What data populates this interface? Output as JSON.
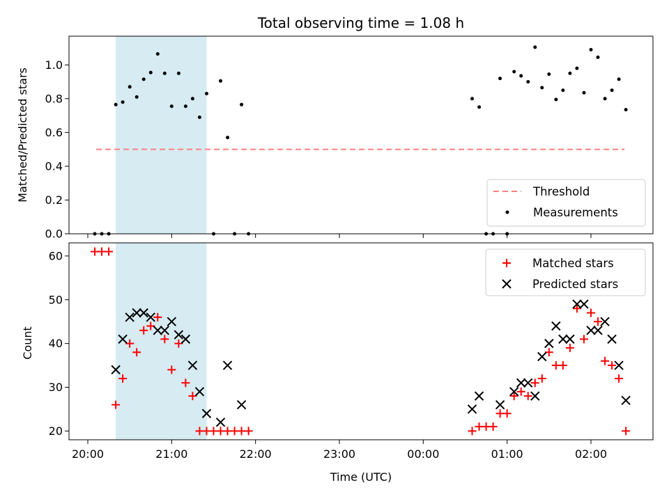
{
  "chart_data": {
    "title": "Total observing time = 1.08 h",
    "shaded_interval": {
      "start": "20:20",
      "end": "21:25",
      "color": "#add8e6"
    },
    "panels": [
      {
        "type": "scatter",
        "ylabel": "Matched/Predicted stars",
        "ylim": [
          0,
          1.17
        ],
        "yticks": [
          "0.0",
          "0.2",
          "0.4",
          "0.6",
          "0.8",
          "1.0"
        ],
        "threshold": {
          "name": "Threshold",
          "value": 0.5,
          "start": "20:06",
          "end": "02:24",
          "color": "#ff7f7f"
        },
        "legend": {
          "position": "lower-right",
          "entries": [
            "Threshold",
            "Measurements"
          ]
        },
        "series": [
          {
            "name": "Measurements",
            "color": "#000000",
            "points": [
              [
                "20:05",
                0
              ],
              [
                "20:10",
                0
              ],
              [
                "20:15",
                0
              ],
              [
                "20:20",
                0.765
              ],
              [
                "20:25",
                0.78
              ],
              [
                "20:30",
                0.87
              ],
              [
                "20:35",
                0.81
              ],
              [
                "20:40",
                0.915
              ],
              [
                "20:45",
                0.955
              ],
              [
                "20:50",
                1.065
              ],
              [
                "20:55",
                0.95
              ],
              [
                "21:00",
                0.755
              ],
              [
                "21:05",
                0.95
              ],
              [
                "21:10",
                0.755
              ],
              [
                "21:15",
                0.8
              ],
              [
                "21:20",
                0.69
              ],
              [
                "21:25",
                0.83
              ],
              [
                "21:30",
                0
              ],
              [
                "21:35",
                0.905
              ],
              [
                "21:40",
                0.57
              ],
              [
                "21:45",
                0
              ],
              [
                "21:50",
                0.765
              ],
              [
                "21:55",
                0
              ],
              [
                "00:35",
                0.8
              ],
              [
                "00:40",
                0.75
              ],
              [
                "00:45",
                0
              ],
              [
                "00:50",
                0
              ],
              [
                "00:55",
                0.92
              ],
              [
                "01:00",
                0
              ],
              [
                "01:05",
                0.96
              ],
              [
                "01:10",
                0.935
              ],
              [
                "01:15",
                0.9
              ],
              [
                "01:20",
                1.105
              ],
              [
                "01:25",
                0.865
              ],
              [
                "01:30",
                0.945
              ],
              [
                "01:35",
                0.795
              ],
              [
                "01:40",
                0.85
              ],
              [
                "01:45",
                0.95
              ],
              [
                "01:50",
                0.98
              ],
              [
                "01:55",
                0.835
              ],
              [
                "02:00",
                1.09
              ],
              [
                "02:05",
                1.045
              ],
              [
                "02:10",
                0.8
              ],
              [
                "02:15",
                0.85
              ],
              [
                "02:20",
                0.915
              ],
              [
                "02:25",
                0.735
              ]
            ]
          }
        ]
      },
      {
        "type": "scatter",
        "xlabel": "Time (UTC)",
        "ylabel": "Count",
        "ylim": [
          18,
          63
        ],
        "yticks": [
          "20",
          "30",
          "40",
          "50",
          "60"
        ],
        "xticks": [
          "20:00",
          "21:00",
          "22:00",
          "23:00",
          "00:00",
          "01:00",
          "02:00"
        ],
        "legend": {
          "position": "upper-right",
          "entries": [
            "Matched stars",
            "Predicted stars"
          ]
        },
        "series": [
          {
            "name": "Matched stars",
            "color": "#ff0000",
            "marker": "plus",
            "points": [
              [
                "20:05",
                61
              ],
              [
                "20:10",
                61
              ],
              [
                "20:15",
                61
              ],
              [
                "20:20",
                26
              ],
              [
                "20:25",
                32
              ],
              [
                "20:30",
                40
              ],
              [
                "20:35",
                38
              ],
              [
                "20:40",
                43
              ],
              [
                "20:45",
                44
              ],
              [
                "20:50",
                46
              ],
              [
                "20:55",
                41
              ],
              [
                "21:00",
                34
              ],
              [
                "21:05",
                40
              ],
              [
                "21:10",
                31
              ],
              [
                "21:15",
                28
              ],
              [
                "21:20",
                20
              ],
              [
                "21:25",
                20
              ],
              [
                "21:30",
                20
              ],
              [
                "21:35",
                20
              ],
              [
                "21:40",
                20
              ],
              [
                "21:45",
                20
              ],
              [
                "21:50",
                20
              ],
              [
                "21:55",
                20
              ],
              [
                "00:35",
                20
              ],
              [
                "00:40",
                21
              ],
              [
                "00:45",
                21
              ],
              [
                "00:50",
                21
              ],
              [
                "00:55",
                24
              ],
              [
                "01:00",
                24
              ],
              [
                "01:05",
                28
              ],
              [
                "01:10",
                29
              ],
              [
                "01:15",
                28
              ],
              [
                "01:20",
                31
              ],
              [
                "01:25",
                32
              ],
              [
                "01:30",
                38
              ],
              [
                "01:35",
                35
              ],
              [
                "01:40",
                35
              ],
              [
                "01:45",
                39
              ],
              [
                "01:50",
                48
              ],
              [
                "01:55",
                41
              ],
              [
                "02:00",
                47
              ],
              [
                "02:05",
                45
              ],
              [
                "02:10",
                36
              ],
              [
                "02:15",
                35
              ],
              [
                "02:20",
                32
              ],
              [
                "02:25",
                20
              ]
            ]
          },
          {
            "name": "Predicted stars",
            "color": "#000000",
            "marker": "x",
            "points": [
              [
                "20:20",
                34
              ],
              [
                "20:25",
                41
              ],
              [
                "20:30",
                46
              ],
              [
                "20:35",
                47
              ],
              [
                "20:40",
                47
              ],
              [
                "20:45",
                46
              ],
              [
                "20:50",
                43
              ],
              [
                "20:55",
                43
              ],
              [
                "21:00",
                45
              ],
              [
                "21:05",
                42
              ],
              [
                "21:10",
                41
              ],
              [
                "21:15",
                35
              ],
              [
                "21:20",
                29
              ],
              [
                "21:25",
                24
              ],
              [
                "21:35",
                22
              ],
              [
                "21:40",
                35
              ],
              [
                "21:50",
                26
              ],
              [
                "00:35",
                25
              ],
              [
                "00:40",
                28
              ],
              [
                "00:55",
                26
              ],
              [
                "01:05",
                29
              ],
              [
                "01:10",
                31
              ],
              [
                "01:15",
                31
              ],
              [
                "01:20",
                28
              ],
              [
                "01:25",
                37
              ],
              [
                "01:30",
                40
              ],
              [
                "01:35",
                44
              ],
              [
                "01:40",
                41
              ],
              [
                "01:45",
                41
              ],
              [
                "01:50",
                49
              ],
              [
                "01:55",
                49
              ],
              [
                "02:00",
                43
              ],
              [
                "02:05",
                43
              ],
              [
                "02:10",
                45
              ],
              [
                "02:15",
                41
              ],
              [
                "02:20",
                35
              ],
              [
                "02:25",
                27
              ]
            ]
          }
        ]
      }
    ]
  }
}
